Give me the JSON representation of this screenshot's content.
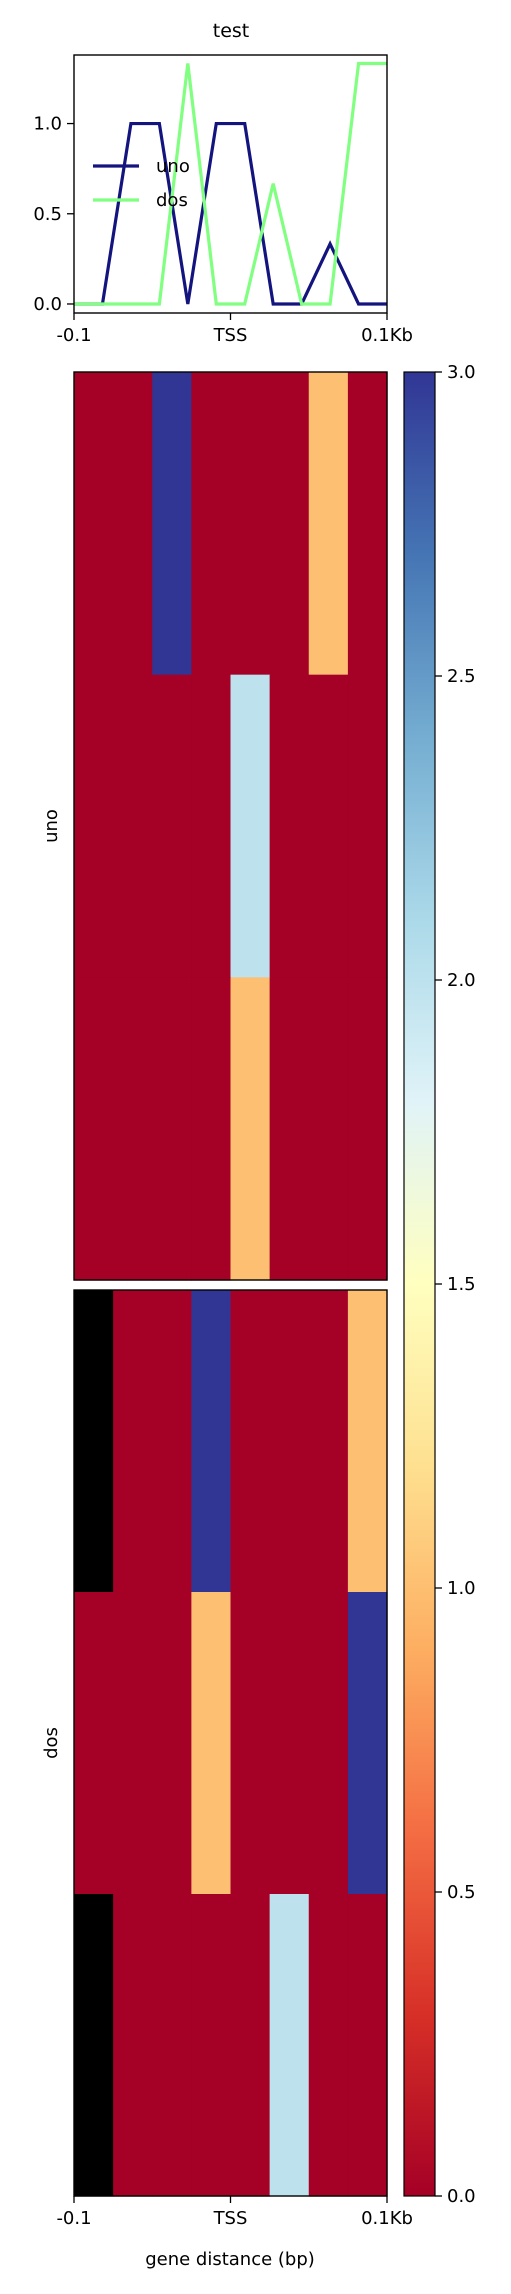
{
  "chart_data": [
    {
      "type": "line",
      "title": "test",
      "x_ticks": [
        "-0.1",
        "TSS",
        "0.1Kb"
      ],
      "y_ticks": [
        "0.0",
        "0.5",
        "1.0"
      ],
      "ylim": [
        -0.05,
        1.38
      ],
      "grid": false,
      "legend_position": "center-left",
      "series": [
        {
          "name": "uno",
          "color": "#14147f",
          "values": [
            0,
            0,
            1,
            1,
            0,
            1,
            1,
            0,
            0,
            0.333,
            0,
            0
          ]
        },
        {
          "name": "dos",
          "color": "#80ff80",
          "values": [
            0,
            0,
            0,
            0,
            1.333,
            0,
            0,
            0.667,
            0,
            0,
            1.333,
            1.333
          ]
        }
      ]
    },
    {
      "type": "heatmap",
      "ylabel": "uno",
      "x_ticks": [
        "-0.1",
        "TSS",
        "0.1Kb"
      ],
      "columns": 8,
      "rows": [
        [
          0,
          0,
          3,
          0,
          0,
          0,
          1,
          0
        ],
        [
          0,
          0,
          0,
          0,
          2,
          0,
          0,
          0
        ],
        [
          0,
          0,
          0,
          0,
          1,
          0,
          0,
          0
        ]
      ]
    },
    {
      "type": "heatmap",
      "ylabel": "dos",
      "xlabel": "gene distance (bp)",
      "x_ticks": [
        "-0.1",
        "TSS",
        "0.1Kb"
      ],
      "columns": 8,
      "rows": [
        [
          null,
          0,
          0,
          3,
          0,
          0,
          0,
          1
        ],
        [
          0,
          0,
          0,
          1,
          0,
          0,
          0,
          3
        ],
        [
          null,
          0,
          0,
          0,
          0,
          2,
          0,
          0
        ]
      ]
    },
    {
      "type": "colorbar",
      "range": [
        0,
        3
      ],
      "ticks": [
        "0.0",
        "0.5",
        "1.0",
        "1.5",
        "2.0",
        "2.5",
        "3.0"
      ],
      "colormap": "RdYlBu",
      "nan_color": "#000000"
    }
  ]
}
